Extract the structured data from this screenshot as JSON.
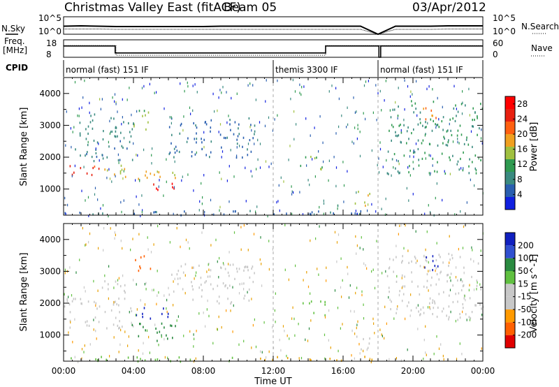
{
  "header": {
    "station": "Christmas Valley East (fitACF)",
    "beam": "Beam 05",
    "date": "03/Apr/2012"
  },
  "noise_panel": {
    "left_label": "N.Sky",
    "left_ticks": [
      "10^5",
      "10^0"
    ],
    "right_ticks": [
      "10^5",
      "10^0"
    ],
    "right_label": "N.Search"
  },
  "freq_panel": {
    "left_label_1": "Freq.",
    "left_label_2": "[MHz]",
    "left_ticks": [
      "18",
      "8"
    ],
    "right_ticks": [
      "60",
      "0"
    ],
    "right_label": "Nave"
  },
  "cpid": {
    "label": "CPID",
    "modes": [
      {
        "name": "normal (fast) 151 IF",
        "start_hour": 0,
        "end_hour": 12
      },
      {
        "name": "themis 3300 IF",
        "start_hour": 12,
        "end_hour": 18
      },
      {
        "name": "normal (fast) 151 IF",
        "start_hour": 18,
        "end_hour": 24
      }
    ]
  },
  "colors": {
    "axis": "#000000",
    "power_scale": [
      "#1020e0",
      "#2a5fb0",
      "#3a8a80",
      "#2f9a50",
      "#a0c040",
      "#f0a020",
      "#ff6010",
      "#e82010",
      "#ff0000"
    ],
    "velocity_scale": [
      "#e00000",
      "#ff6000",
      "#ff9a00",
      "#e8a000",
      "#c8c8c8",
      "#c8c8c8",
      "#60c040",
      "#2a8a40",
      "#3050d0",
      "#1020c0"
    ]
  },
  "chart_data": [
    {
      "type": "line",
      "panel": "noise",
      "xlabel": "",
      "ylabel": "N.Sky",
      "y_right_label": "N.Search",
      "x": [
        0,
        1,
        2,
        3,
        4,
        5,
        6,
        7,
        8,
        9,
        10,
        11,
        12,
        13,
        14,
        15,
        16,
        17,
        18,
        19,
        20,
        21,
        22,
        23,
        24
      ],
      "series": [
        {
          "values": [
            2.3,
            2.4,
            2.3,
            2.2,
            2.2,
            2.2,
            2.2,
            2.2,
            2.2,
            2.3,
            2.3,
            2.3,
            2.3,
            2.3,
            2.3,
            2.3,
            2.3,
            2.3,
            0.0,
            2.3,
            2.3,
            2.3,
            2.4,
            2.4,
            2.4
          ]
        },
        {
          "values": [
            1.5,
            1.5,
            1.5,
            1.4,
            1.4,
            1.4,
            1.4,
            1.4,
            1.4,
            1.4,
            1.4,
            1.4,
            1.4,
            1.4,
            1.4,
            1.4,
            1.4,
            1.4,
            0.0,
            1.4,
            1.4,
            1.4,
            1.5,
            1.5,
            1.5
          ]
        }
      ],
      "ylim": [
        0,
        5
      ]
    },
    {
      "type": "line",
      "panel": "frequency",
      "ylabel": "Freq. [MHz]",
      "y_right_label": "Nave",
      "x": [
        0,
        2.95,
        2.95,
        15,
        15,
        18.05,
        18.05,
        18.15,
        18.15,
        24
      ],
      "series": [
        {
          "values": [
            14.5,
            14.5,
            10.5,
            10.5,
            14.5,
            14.5,
            8,
            8,
            14.5,
            14.5
          ]
        }
      ],
      "nave_series": {
        "x": [
          0,
          3,
          3,
          15,
          15,
          24
        ],
        "values": [
          40,
          40,
          7,
          7,
          40,
          40
        ]
      },
      "ylim": [
        8,
        18
      ],
      "y_right_lim": [
        0,
        60
      ]
    },
    {
      "type": "heatmap",
      "panel": "power",
      "title": "",
      "xlabel": "",
      "ylabel": "Slant Range [km]",
      "xlim": [
        0,
        24
      ],
      "ylim": [
        180,
        4500
      ],
      "x_ticks": [
        "00:00",
        "04:00",
        "08:00",
        "12:00",
        "16:00",
        "20:00",
        "00:00"
      ],
      "y_ticks": [
        1000,
        2000,
        3000,
        4000
      ],
      "colorbar": {
        "label": "Power [dB]",
        "ticks": [
          4,
          8,
          12,
          16,
          20,
          24,
          28
        ],
        "range": [
          0,
          30
        ]
      },
      "structures": [
        {
          "t0": 0.0,
          "t1": 2.0,
          "r0": 1400,
          "r1": 1800,
          "value": 24
        },
        {
          "t0": 2.0,
          "t1": 3.5,
          "r0": 1450,
          "r1": 1900,
          "value": 16
        },
        {
          "t0": 3.5,
          "t1": 6.5,
          "r0": 1300,
          "r1": 1700,
          "value": 18
        },
        {
          "t0": 5.0,
          "t1": 6.5,
          "r0": 850,
          "r1": 1200,
          "value": 28
        },
        {
          "t0": 4.0,
          "t1": 5.0,
          "r0": 2800,
          "r1": 3600,
          "value": 14
        },
        {
          "t0": 0.5,
          "t1": 4.0,
          "r0": 1900,
          "r1": 3400,
          "value": 8
        },
        {
          "t0": 6.0,
          "t1": 11.0,
          "r0": 2000,
          "r1": 3300,
          "value": 6
        },
        {
          "t0": 13.5,
          "t1": 15.0,
          "r0": 1600,
          "r1": 2100,
          "value": 14
        },
        {
          "t0": 16.5,
          "t1": 17.5,
          "r0": 500,
          "r1": 1000,
          "value": 16
        },
        {
          "t0": 18.5,
          "t1": 24.0,
          "r0": 1500,
          "r1": 3800,
          "value": 10
        },
        {
          "t0": 20.5,
          "t1": 21.5,
          "r0": 3000,
          "r1": 3600,
          "value": 20
        },
        {
          "t0": 0.0,
          "t1": 18.0,
          "r0": 200,
          "r1": 350,
          "value": 6
        }
      ]
    },
    {
      "type": "heatmap",
      "panel": "velocity",
      "title": "",
      "xlabel": "Time UT",
      "ylabel": "Slant Range [km]",
      "xlim": [
        0,
        24
      ],
      "ylim": [
        180,
        4500
      ],
      "x_ticks": [
        "00:00",
        "04:00",
        "08:00",
        "12:00",
        "16:00",
        "20:00",
        "00:00"
      ],
      "y_ticks": [
        1000,
        2000,
        3000,
        4000
      ],
      "colorbar": {
        "label": "Velocity [m s^-1]",
        "ticks": [
          200,
          100,
          50,
          15,
          -15,
          -50,
          -100,
          -200
        ]
      },
      "structures": [
        {
          "t0": 0.0,
          "t1": 4.0,
          "r0": 1200,
          "r1": 2200,
          "value": 0
        },
        {
          "t0": 2.0,
          "t1": 3.5,
          "r0": 2300,
          "r1": 2900,
          "value": 0
        },
        {
          "t0": 4.0,
          "t1": 6.0,
          "r0": 1500,
          "r1": 1900,
          "value": 180
        },
        {
          "t0": 3.5,
          "t1": 6.5,
          "r0": 850,
          "r1": 1400,
          "value": 60
        },
        {
          "t0": 4.0,
          "t1": 5.0,
          "r0": 3000,
          "r1": 3600,
          "value": -120
        },
        {
          "t0": 6.0,
          "t1": 11.0,
          "r0": 2000,
          "r1": 3300,
          "value": 0
        },
        {
          "t0": 13.5,
          "t1": 15.0,
          "r0": 1600,
          "r1": 2100,
          "value": 40
        },
        {
          "t0": 16.5,
          "t1": 17.5,
          "r0": 500,
          "r1": 1000,
          "value": 0
        },
        {
          "t0": 18.5,
          "t1": 24.0,
          "r0": 1500,
          "r1": 3600,
          "value": 0
        },
        {
          "t0": 20.5,
          "t1": 21.5,
          "r0": 3000,
          "r1": 3600,
          "value": 190
        },
        {
          "t0": 0.0,
          "t1": 11.0,
          "r0": 200,
          "r1": 350,
          "value": 40
        },
        {
          "t0": 11.0,
          "t1": 18.0,
          "r0": 200,
          "r1": 350,
          "value": -40
        }
      ]
    }
  ],
  "axes": {
    "time_label": "Time UT"
  }
}
